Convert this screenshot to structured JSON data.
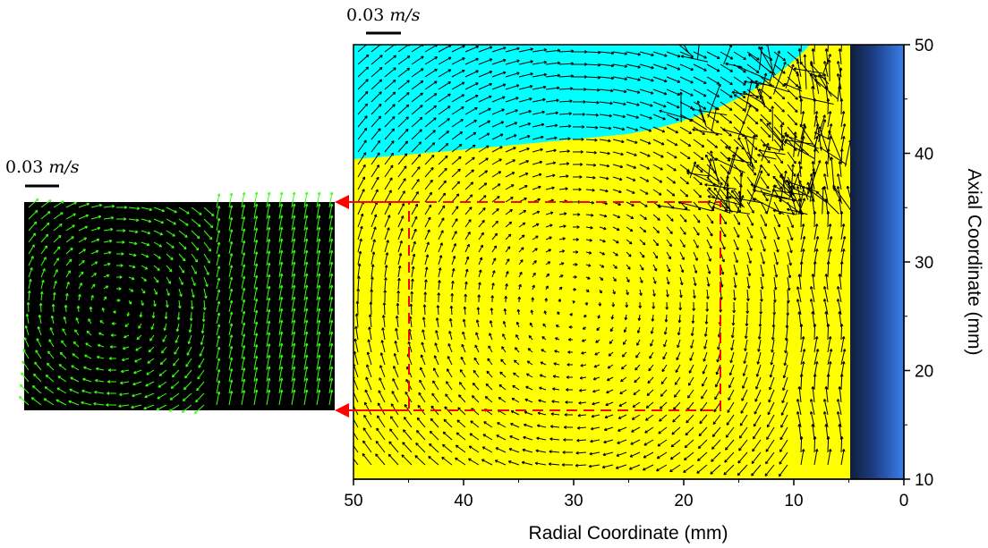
{
  "chart_data": [
    {
      "type": "vector-field",
      "title": "",
      "xlabel": "Radial Coordinate (mm)",
      "ylabel": "Axial Coordinate (mm)",
      "x_ticks": [
        "50",
        "40",
        "30",
        "20",
        "10",
        "0"
      ],
      "y_ticks": [
        "50",
        "40",
        "30",
        "20",
        "10"
      ],
      "xlim": [
        50,
        0
      ],
      "ylim": [
        10,
        50
      ],
      "x_reversed": true,
      "scale_bar": {
        "value": "0.03",
        "unit": "m/s"
      },
      "regions": [
        {
          "name": "upper phase",
          "color": "#00ffff"
        },
        {
          "name": "lower phase",
          "color": "#ffff00"
        },
        {
          "name": "wall",
          "color": "#1a3a7a"
        }
      ],
      "vortex_center": {
        "x": 30,
        "y": 26
      },
      "zoom_region": {
        "x": [
          45,
          17
        ],
        "y": [
          16.5,
          35.5
        ]
      }
    },
    {
      "type": "vector-field",
      "background": "#000000",
      "arrow_color": "#39ff14",
      "scale_bar": {
        "value": "0.03",
        "unit": "m/s"
      }
    }
  ],
  "colors": {
    "highlight": "#ff0000",
    "arrow": "#000000"
  }
}
